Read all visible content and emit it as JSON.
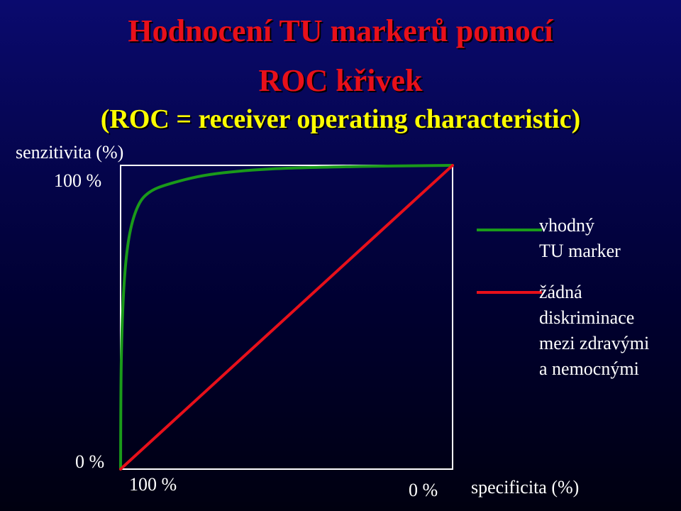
{
  "slide": {
    "title_line1": "Hodnocení TU markerů pomocí",
    "title_line2": "ROC křivek",
    "subtitle": "(ROC =  receiver operating characteristic)"
  },
  "chart_data": {
    "type": "line",
    "ylabel": "senzitivita (%)",
    "xlabel": "specificita (%)",
    "y_tick_labels": [
      "100 %",
      "0 %"
    ],
    "x_tick_labels": [
      "100 %",
      "0 %"
    ],
    "xlim": [
      100,
      0
    ],
    "ylim": [
      0,
      100
    ],
    "x_axis_direction": "reversed",
    "grid": false,
    "legend_position": "right",
    "series": [
      {
        "name": "vhodný TU marker",
        "color": "#1a9a1a",
        "points": [
          {
            "x": 100,
            "y": 0
          },
          {
            "x": 99.8,
            "y": 35
          },
          {
            "x": 99.0,
            "y": 60
          },
          {
            "x": 97.5,
            "y": 76
          },
          {
            "x": 95.0,
            "y": 86
          },
          {
            "x": 91.5,
            "y": 91
          },
          {
            "x": 85.0,
            "y": 94
          },
          {
            "x": 73.0,
            "y": 97
          },
          {
            "x": 55.0,
            "y": 98.8
          },
          {
            "x": 30.0,
            "y": 99.6
          },
          {
            "x": 0,
            "y": 100
          }
        ]
      },
      {
        "name": "žádná diskriminace mezi zdravými a nemocnými",
        "color": "#e8101a",
        "points": [
          {
            "x": 100,
            "y": 0
          },
          {
            "x": 0,
            "y": 100
          }
        ]
      }
    ],
    "legend": [
      {
        "lines": [
          "vhodný",
          "TU marker"
        ],
        "color": "#1a9a1a"
      },
      {
        "lines": [
          "žádná",
          "diskriminace",
          "mezi zdravými",
          "a nemocnými"
        ],
        "color": "#e8101a"
      }
    ]
  }
}
